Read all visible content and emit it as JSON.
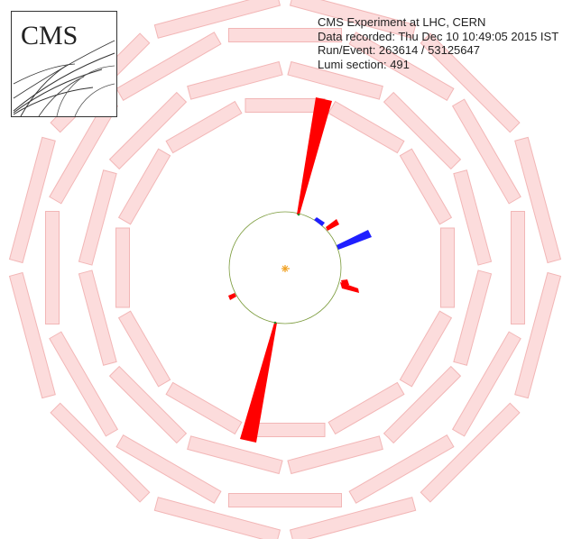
{
  "event_info": {
    "experiment": "CMS Experiment at LHC, CERN",
    "data_recorded": "Data recorded: Thu Dec 10 10:49:05 2015 IST",
    "run_event": "Run/Event: 263614 / 53125647",
    "lumi_section": "Lumi section: 491"
  },
  "logo": {
    "text": "CMS"
  },
  "colors": {
    "module_fill": "#fcdcdc",
    "module_stroke": "#f2b6b6",
    "energy_red": "#ff0000",
    "energy_blue": "#1f1fff",
    "tracker_circle": "#7a9a3a",
    "vertex": "#f0a020"
  }
}
